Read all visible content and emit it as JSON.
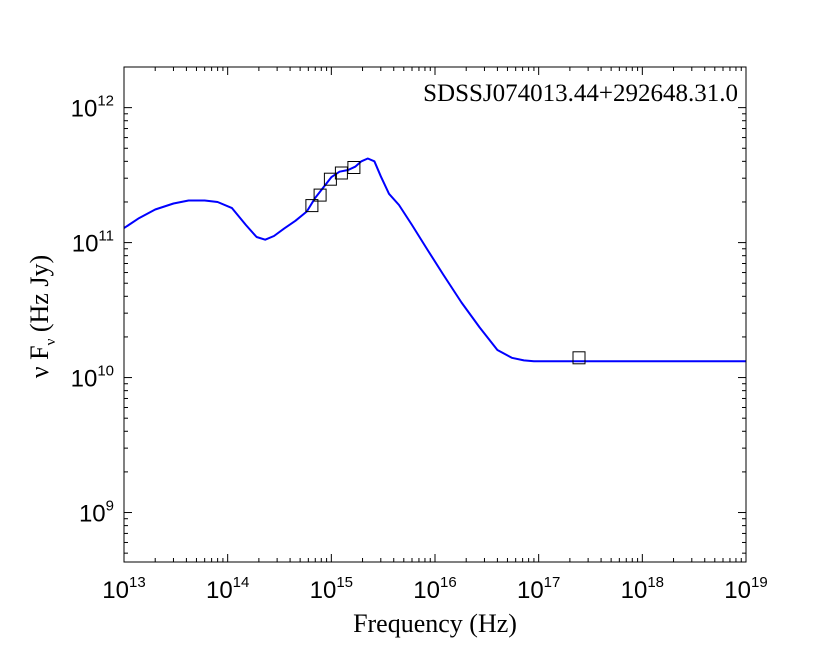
{
  "chart_data": {
    "type": "line",
    "title": "SDSSJ074013.44+292648.31.0",
    "xlabel": "Frequency (Hz)",
    "ylabel_parts": [
      "ν F",
      "ν",
      " (Hz Jy)"
    ],
    "x_scale": "log",
    "y_scale": "log",
    "xlim": [
      10000000000000.0,
      1e+19
    ],
    "ylim": [
      430000000.0,
      2000000000000.0
    ],
    "x_ticks": [
      {
        "base": "10",
        "exp": "13",
        "value": 10000000000000.0
      },
      {
        "base": "10",
        "exp": "14",
        "value": 100000000000000.0
      },
      {
        "base": "10",
        "exp": "15",
        "value": 1000000000000000.0
      },
      {
        "base": "10",
        "exp": "16",
        "value": 1e+16
      },
      {
        "base": "10",
        "exp": "17",
        "value": 1e+17
      },
      {
        "base": "10",
        "exp": "18",
        "value": 1e+18
      },
      {
        "base": "10",
        "exp": "19",
        "value": 1e+19
      }
    ],
    "y_ticks": [
      {
        "base": "10",
        "exp": "9",
        "value": 1000000000.0
      },
      {
        "base": "10",
        "exp": "10",
        "value": 10000000000.0
      },
      {
        "base": "10",
        "exp": "11",
        "value": 100000000000.0
      },
      {
        "base": "10",
        "exp": "12",
        "value": 1000000000000.0
      }
    ],
    "grid": false,
    "series": [
      {
        "style": "line",
        "color": "#0000ff",
        "x": [
          10000000000000.0,
          14000000000000.0,
          20000000000000.0,
          30000000000000.0,
          42000000000000.0,
          60000000000000.0,
          80000000000000.0,
          110000000000000.0,
          150000000000000.0,
          190000000000000.0,
          230000000000000.0,
          280000000000000.0,
          350000000000000.0,
          450000000000000.0,
          580000000000000.0,
          700000000000000.0,
          850000000000000.0,
          1000000000000000.0,
          1200000000000000.0,
          1450000000000000.0,
          1700000000000000.0,
          1950000000000000.0,
          2250000000000000.0,
          2600000000000000.0,
          3000000000000000.0,
          3600000000000000.0,
          4500000000000000.0,
          6000000000000000.0,
          8500000000000000.0,
          1.2e+16,
          1.8e+16,
          2.7e+16,
          4e+16,
          5.5e+16,
          7.2e+16,
          9e+16,
          1.2e+17,
          2e+17,
          5e+17,
          1e+18,
          3e+18,
          1e+19
        ],
        "y": [
          128000000000.0,
          152000000000.0,
          176000000000.0,
          195000000000.0,
          205000000000.0,
          205000000000.0,
          200000000000.0,
          180000000000.0,
          135000000000.0,
          110000000000.0,
          105000000000.0,
          112000000000.0,
          127000000000.0,
          145000000000.0,
          170000000000.0,
          215000000000.0,
          260000000000.0,
          305000000000.0,
          335000000000.0,
          345000000000.0,
          365000000000.0,
          400000000000.0,
          420000000000.0,
          400000000000.0,
          310000000000.0,
          230000000000.0,
          190000000000.0,
          135000000000.0,
          88000000000.0,
          58000000000.0,
          36000000000.0,
          23500000000.0,
          16000000000.0,
          14000000000.0,
          13400000000.0,
          13200000000.0,
          13200000000.0,
          13200000000.0,
          13200000000.0,
          13200000000.0,
          13200000000.0,
          13200000000.0
        ]
      },
      {
        "style": "markers",
        "marker": "square",
        "color": "#000000",
        "x": [
          650000000000000.0,
          780000000000000.0,
          980000000000000.0,
          1250000000000000.0,
          1650000000000000.0,
          2.45e+17
        ],
        "y": [
          188000000000.0,
          225000000000.0,
          295000000000.0,
          328000000000.0,
          360000000000.0,
          14000000000.0
        ]
      }
    ]
  }
}
